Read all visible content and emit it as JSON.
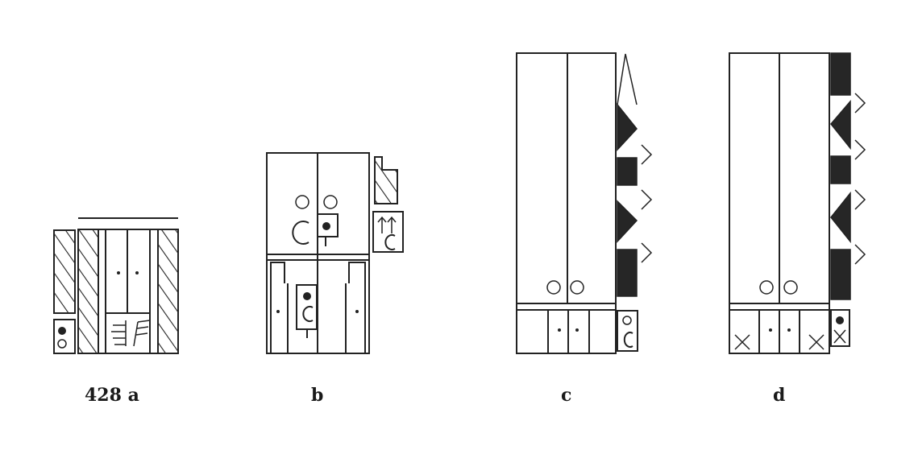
{
  "figure": {
    "labels": [
      "428 a",
      "b",
      "c",
      "d"
    ]
  },
  "colors": {
    "ink": "#222222",
    "background": "#ffffff"
  }
}
